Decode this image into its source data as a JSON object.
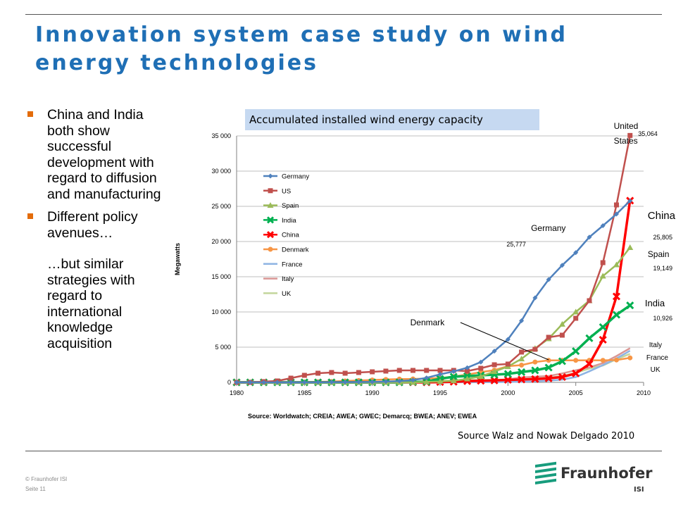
{
  "slide": {
    "title": "Innovation system case study on wind energy technologies",
    "bullets": [
      {
        "text": "China and India both show successful development with regard to diffusion and manufacturing"
      },
      {
        "text": "Different policy avenues…",
        "subtext": "…but similar strategies with regard to international knowledge acquisition"
      }
    ],
    "source_note": "Source Walz and Nowak Delgado 2010",
    "footer": {
      "copyright": "© Fraunhofer ISI",
      "page": "Seite 11"
    },
    "logo": {
      "name": "Fraunhofer",
      "sub": "ISI"
    },
    "colors": {
      "title": "#1f6fb5",
      "bullet_marker": "#e36c0a",
      "header_band": "#c6d9f1"
    }
  },
  "chart_data": {
    "type": "line",
    "title": "Accumulated installed wind energy capacity",
    "ylabel": "Megawatts",
    "source": "Source: Worldwatch; CREIA; AWEA; GWEC; Demarcq; BWEA; ANEV; EWEA",
    "xlim": [
      1980,
      2010
    ],
    "ylim": [
      0,
      35000
    ],
    "xticks": [
      1980,
      1985,
      1990,
      1995,
      2000,
      2005,
      2010
    ],
    "yticks": [
      0,
      5000,
      10000,
      15000,
      20000,
      25000,
      30000,
      35000
    ],
    "ytick_labels": [
      "0",
      "5 000",
      "10 000",
      "15 000",
      "20 000",
      "25 000",
      "30 000",
      "35 000"
    ],
    "legend_position": "upper-left",
    "grid": "horizontal",
    "x": [
      1980,
      1981,
      1982,
      1983,
      1984,
      1985,
      1986,
      1987,
      1988,
      1989,
      1990,
      1991,
      1992,
      1993,
      1994,
      1995,
      1996,
      1997,
      1998,
      1999,
      2000,
      2001,
      2002,
      2003,
      2004,
      2005,
      2006,
      2007,
      2008,
      2009
    ],
    "series": [
      {
        "name": "Germany",
        "color": "#4f81bd",
        "marker": "diamond",
        "values": [
          0,
          0,
          0,
          0,
          0,
          0,
          10,
          20,
          30,
          50,
          60,
          110,
          180,
          330,
          640,
          1140,
          1550,
          2080,
          2880,
          4440,
          6100,
          8750,
          12000,
          14600,
          16630,
          18430,
          20620,
          22250,
          23900,
          25777
        ]
      },
      {
        "name": "US",
        "color": "#c0504d",
        "marker": "square",
        "values": [
          0,
          0,
          100,
          200,
          600,
          1000,
          1300,
          1400,
          1300,
          1400,
          1500,
          1600,
          1700,
          1700,
          1700,
          1700,
          1700,
          1600,
          2000,
          2500,
          2600,
          4300,
          4700,
          6400,
          6700,
          9100,
          11600,
          17000,
          25200,
          35064
        ]
      },
      {
        "name": "Spain",
        "color": "#9bbb59",
        "marker": "triangle",
        "values": [
          0,
          0,
          0,
          0,
          0,
          0,
          0,
          0,
          0,
          0,
          0,
          0,
          0,
          0,
          70,
          120,
          230,
          500,
          830,
          1540,
          2240,
          3340,
          4830,
          6200,
          8260,
          10000,
          11600,
          15100,
          16700,
          19149
        ]
      },
      {
        "name": "India",
        "color": "#00b050",
        "marker": "x",
        "values": [
          0,
          0,
          0,
          0,
          0,
          0,
          0,
          0,
          0,
          0,
          0,
          0,
          0,
          50,
          100,
          500,
          800,
          900,
          1000,
          1100,
          1200,
          1460,
          1700,
          2100,
          3000,
          4430,
          6270,
          7850,
          9600,
          10926
        ]
      },
      {
        "name": "China",
        "color": "#ff0000",
        "marker": "x",
        "values": [
          0,
          0,
          0,
          0,
          0,
          0,
          0,
          0,
          0,
          0,
          0,
          0,
          0,
          0,
          0,
          40,
          80,
          170,
          220,
          270,
          350,
          400,
          470,
          570,
          760,
          1270,
          2600,
          6050,
          12200,
          25805
        ]
      },
      {
        "name": "Denmark",
        "color": "#f79646",
        "marker": "circle",
        "values": [
          0,
          0,
          0,
          0,
          0,
          50,
          80,
          110,
          200,
          260,
          340,
          410,
          460,
          490,
          540,
          610,
          830,
          1120,
          1450,
          1740,
          2300,
          2450,
          2890,
          3120,
          3120,
          3130,
          3140,
          3130,
          3180,
          3480
        ]
      },
      {
        "name": "France",
        "color": "#8eb4e3",
        "marker": "none",
        "values": [
          0,
          0,
          0,
          0,
          0,
          0,
          0,
          0,
          0,
          0,
          0,
          0,
          0,
          0,
          0,
          0,
          10,
          10,
          20,
          30,
          60,
          90,
          150,
          250,
          390,
          760,
          1570,
          2450,
          3400,
          4490
        ]
      },
      {
        "name": "Italy",
        "color": "#d99694",
        "marker": "none",
        "values": [
          0,
          0,
          0,
          0,
          0,
          0,
          0,
          0,
          0,
          0,
          0,
          0,
          0,
          0,
          20,
          30,
          70,
          100,
          180,
          280,
          430,
          700,
          800,
          900,
          1270,
          1720,
          2120,
          2730,
          3740,
          4850
        ]
      },
      {
        "name": "UK",
        "color": "#c3d69b",
        "marker": "none",
        "values": [
          0,
          0,
          0,
          0,
          0,
          0,
          0,
          0,
          0,
          0,
          0,
          0,
          0,
          0,
          100,
          200,
          270,
          330,
          340,
          360,
          410,
          470,
          550,
          650,
          890,
          1340,
          1960,
          2390,
          3290,
          4050
        ]
      }
    ],
    "annotations": [
      {
        "text": "United",
        "x": 2007.8,
        "y": 36000
      },
      {
        "text": "States",
        "x": 2007.8,
        "y": 33900
      },
      {
        "text": "35,064",
        "x": 2009.6,
        "y": 35000
      },
      {
        "text": "Germany",
        "x": 2001.7,
        "y": 21500
      },
      {
        "text": "25,777",
        "x": 1999.9,
        "y": 19300
      },
      {
        "text": "China",
        "x": 2010.3,
        "y": 23200
      },
      {
        "text": "25,805",
        "x": 2010.7,
        "y": 20300
      },
      {
        "text": "Spain",
        "x": 2010.3,
        "y": 17800
      },
      {
        "text": "19,149",
        "x": 2010.7,
        "y": 15900
      },
      {
        "text": "India",
        "x": 2010.1,
        "y": 10800
      },
      {
        "text": "10,926",
        "x": 2010.7,
        "y": 8800
      },
      {
        "text": "Denmark",
        "x": 1992.8,
        "y": 8100
      },
      {
        "text": "Italy",
        "x": 2010.4,
        "y": 5000
      },
      {
        "text": "France",
        "x": 2010.2,
        "y": 3200
      },
      {
        "text": "UK",
        "x": 2010.5,
        "y": 1500
      }
    ],
    "arrow": {
      "from": [
        1996.5,
        8500
      ],
      "to": [
        2003.0,
        3200
      ]
    }
  }
}
